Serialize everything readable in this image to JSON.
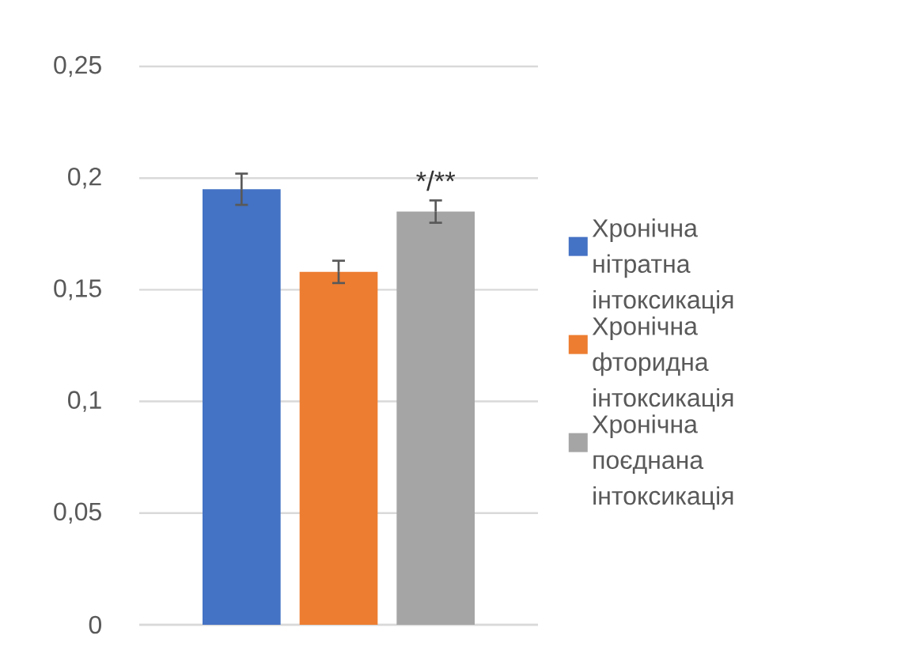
{
  "chart_data": {
    "type": "bar",
    "categories": [
      null
    ],
    "series": [
      {
        "name": "Хронічна нітратна інтоксикація",
        "color": "#4472c4",
        "values": [
          0.195
        ],
        "errors": [
          0.007
        ]
      },
      {
        "name": "Хронічна фторидна інтоксикація",
        "color": "#ed7d31",
        "values": [
          0.158
        ],
        "errors": [
          0.005
        ]
      },
      {
        "name": "Хронічна поєднана інтоксикація",
        "color": "#a5a5a5",
        "values": [
          0.185
        ],
        "errors": [
          0.005
        ]
      }
    ],
    "ylim": [
      0,
      0.25
    ],
    "yticks": [
      0,
      {
        "value": 0.05,
        "label": "0,05"
      },
      {
        "value": 0.1,
        "label": "0,1"
      },
      {
        "value": 0.15,
        "label": "0,15"
      },
      {
        "value": 0.2,
        "label": "0,2"
      },
      {
        "value": 0.25,
        "label": "0,25"
      }
    ],
    "grid": "y",
    "legend": "right",
    "annotations": [
      "*/**"
    ]
  }
}
